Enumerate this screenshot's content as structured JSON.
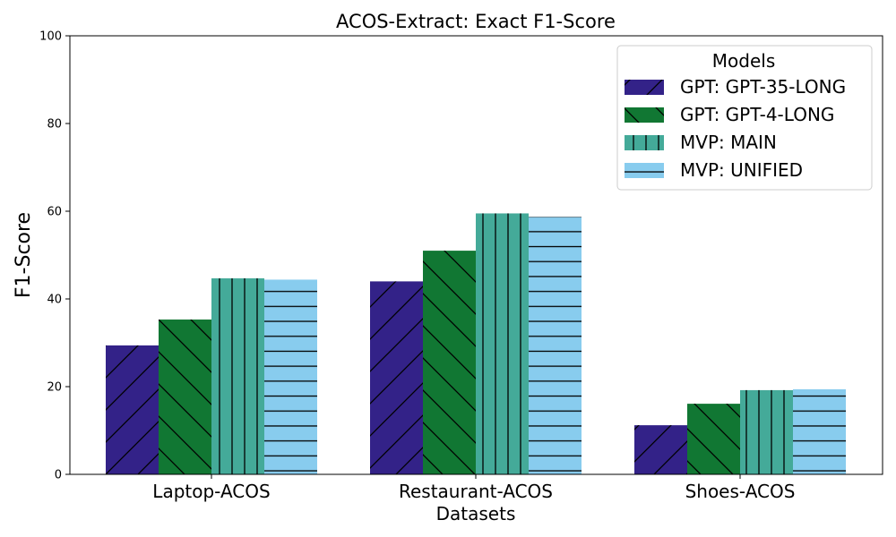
{
  "chart_data": {
    "type": "bar",
    "title": "ACOS-Extract: Exact F1-Score",
    "xlabel": "Datasets",
    "ylabel": "F1-Score",
    "ylim": [
      0,
      100
    ],
    "yticks": [
      "0",
      "20",
      "40",
      "60",
      "80",
      "100"
    ],
    "categories": [
      "Laptop-ACOS",
      "Restaurant-ACOS",
      "Shoes-ACOS"
    ],
    "legend": {
      "title": "Models",
      "placement": "top-right"
    },
    "series": [
      {
        "name": "GPT: GPT-35-LONG",
        "color": "#332288",
        "hatch": "/",
        "values": [
          29.4,
          44.0,
          11.2
        ]
      },
      {
        "name": "GPT: GPT-4-LONG",
        "color": "#117733",
        "hatch": "\\",
        "values": [
          35.3,
          51.0,
          16.1
        ]
      },
      {
        "name": "MVP: MAIN",
        "color": "#44AA99",
        "hatch": "|",
        "values": [
          44.7,
          59.5,
          19.2
        ]
      },
      {
        "name": "MVP: UNIFIED",
        "color": "#88CCEE",
        "hatch": "-",
        "values": [
          44.4,
          58.7,
          19.4
        ]
      }
    ],
    "grid": false
  }
}
